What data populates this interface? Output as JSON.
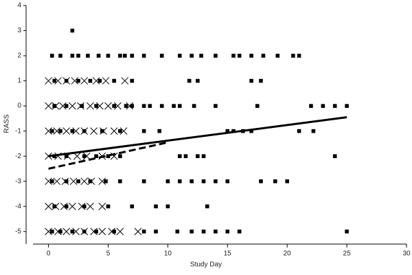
{
  "chart_data": {
    "type": "scatter",
    "x_label": "Study Day",
    "y_label": "RASS",
    "xlim": [
      -1.3,
      30
    ],
    "ylim": [
      -5.5,
      4
    ],
    "xticks": [
      0,
      5,
      10,
      15,
      20,
      25,
      30
    ],
    "yticks": [
      -5,
      -4,
      -3,
      -2,
      -1,
      0,
      1,
      2,
      3,
      4
    ],
    "series": [
      {
        "marker": "square",
        "color": "#000000",
        "x": [
          2,
          0.3,
          1,
          2,
          2.5,
          3.3,
          4.2,
          5,
          6,
          6.4,
          7,
          8,
          9.5,
          11,
          12,
          12.8,
          14,
          15.5,
          16,
          17,
          18,
          19.2,
          20.5,
          21,
          0.5,
          1.5,
          2.5,
          3.5,
          4.3,
          5.5,
          7,
          11.8,
          12.5,
          17,
          17.8,
          0.5,
          1.5,
          2.8,
          4,
          5.5,
          6.5,
          7,
          8,
          8.5,
          9.5,
          10.5,
          11,
          12.2,
          14,
          17.5,
          22,
          23,
          24,
          25,
          0.3,
          1,
          2,
          3,
          4.5,
          6,
          8,
          9.3,
          15,
          15.5,
          16.3,
          17,
          21,
          22.2,
          0.5,
          1.5,
          3,
          4,
          5,
          6,
          11,
          11.5,
          12.5,
          13,
          24,
          0.3,
          1.5,
          2.5,
          3.5,
          4.8,
          6,
          8,
          10,
          11,
          12,
          13,
          14,
          15,
          17.8,
          19,
          20,
          0.5,
          1.5,
          3,
          5,
          7,
          9,
          10,
          13.3,
          0.3,
          1,
          2,
          3,
          4,
          5.5,
          8,
          9,
          10.8,
          12,
          13,
          14,
          15,
          16,
          25
        ],
        "y": [
          3,
          2,
          2,
          2,
          2,
          2,
          2,
          2,
          2,
          2,
          2,
          2,
          2,
          2,
          2,
          2,
          2,
          2,
          2,
          2,
          2,
          2,
          2,
          2,
          1,
          1,
          1,
          1,
          1,
          1,
          1,
          1,
          1,
          1,
          1,
          0,
          0,
          0,
          0,
          0,
          0,
          0,
          0,
          0,
          0,
          0,
          0,
          0,
          0,
          0,
          0,
          0,
          0,
          0,
          -1,
          -1,
          -1,
          -1,
          -1,
          -1,
          -1,
          -1,
          -1,
          -1,
          -1,
          -1,
          -1,
          -1,
          -2,
          -2,
          -2,
          -2,
          -2,
          -2,
          -2,
          -2,
          -2,
          -2,
          -2,
          -3,
          -3,
          -3,
          -3,
          -3,
          -3,
          -3,
          -3,
          -3,
          -3,
          -3,
          -3,
          -3,
          -3,
          -3,
          -3,
          -4,
          -4,
          -4,
          -4,
          -4,
          -4,
          -4,
          -4,
          -5,
          -5,
          -5,
          -5,
          -5,
          -5,
          -5,
          -5,
          -5,
          -5,
          -5,
          -5,
          -5,
          -5,
          -5
        ]
      },
      {
        "marker": "x",
        "color": "#000000",
        "x": [
          0,
          0.8,
          1.5,
          2.2,
          3,
          4,
          4.8,
          6.4,
          0,
          0.6,
          1.2,
          2,
          2.7,
          3.5,
          4.3,
          5,
          5.8,
          6.8,
          0,
          0.7,
          1.5,
          2.3,
          3,
          3.8,
          4.6,
          5.5,
          6.3,
          0,
          0.8,
          1.6,
          2.4,
          3.2,
          4.5,
          5.5,
          0,
          0.7,
          1.4,
          2.1,
          3,
          3.6,
          4.5,
          0,
          0.6,
          1.3,
          2,
          2.8,
          3.5,
          4.5,
          0,
          0.8,
          1.5,
          2.3,
          3,
          3.8,
          4.5,
          5.3,
          6,
          7.5
        ],
        "y": [
          1,
          1,
          1,
          1,
          1,
          1,
          1,
          1,
          0,
          0,
          0,
          0,
          0,
          0,
          0,
          0,
          0,
          0,
          -1,
          -1,
          -1,
          -1,
          -1,
          -1,
          -1,
          -1,
          -1,
          -2,
          -2,
          -2,
          -2,
          -2,
          -2,
          -2,
          -3,
          -3,
          -3,
          -3,
          -3,
          -3,
          -3,
          -4,
          -4,
          -4,
          -4,
          -4,
          -4,
          -4,
          -5,
          -5,
          -5,
          -5,
          -5,
          -5,
          -5,
          -5,
          -5,
          -5
        ]
      },
      {
        "marker": "line",
        "dash": "solid",
        "color": "#000000",
        "x": [
          0,
          25
        ],
        "y": [
          -2,
          -0.45
        ]
      },
      {
        "marker": "line",
        "dash": "dashed",
        "color": "#000000",
        "x": [
          0,
          10
        ],
        "y": [
          -2.5,
          -1.45
        ]
      }
    ]
  }
}
